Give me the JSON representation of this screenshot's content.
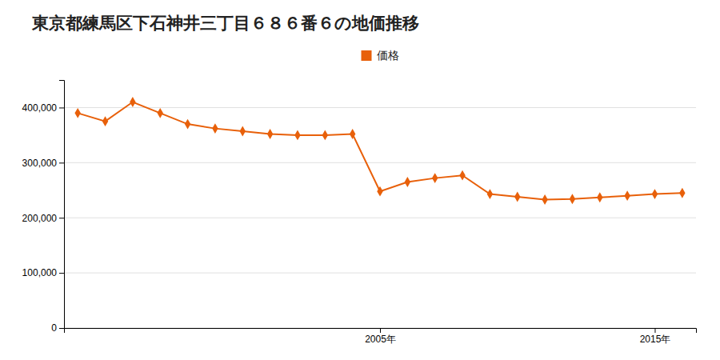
{
  "chart_data": {
    "type": "line",
    "title": "東京都練馬区下石神井三丁目６８６番６の地価推移",
    "x": [
      1994,
      1995,
      1996,
      1997,
      1998,
      1999,
      2000,
      2001,
      2002,
      2003,
      2004,
      2005,
      2006,
      2007,
      2008,
      2009,
      2010,
      2011,
      2012,
      2013,
      2014,
      2015,
      2016
    ],
    "series": [
      {
        "name": "価格",
        "color": "#E8600A",
        "marker": "diamond",
        "values": [
          390000,
          375000,
          410000,
          390000,
          370000,
          362000,
          357000,
          352000,
          350000,
          350000,
          352000,
          248000,
          265000,
          272000,
          277000,
          243000,
          238000,
          233000,
          234000,
          237000,
          240000,
          243000,
          245000
        ]
      }
    ],
    "xlim": [
      1993.5,
      2016.5
    ],
    "xticks": [
      {
        "value": 2005,
        "label": "2005年"
      },
      {
        "value": 2015,
        "label": "2015年"
      }
    ],
    "ylim": [
      0,
      450000
    ],
    "yticks": [
      0,
      {
        "value": 100000,
        "label": "100,000"
      },
      {
        "value": 200000,
        "label": "200,000"
      },
      {
        "value": 300000,
        "label": "300,000"
      },
      {
        "value": 400000,
        "label": "400,000"
      }
    ],
    "grid": true,
    "legend": "top"
  }
}
